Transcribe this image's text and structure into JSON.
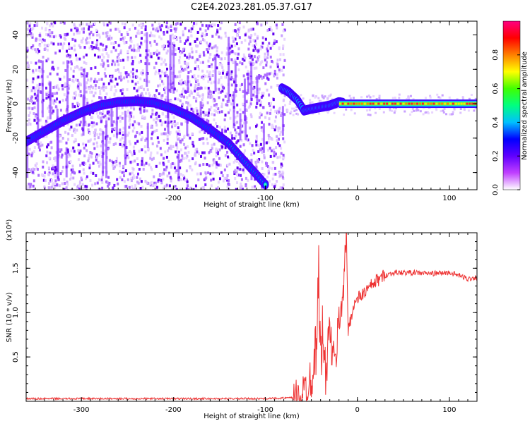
{
  "title": "C2E4.2023.281.05.37.G17",
  "chart_data": [
    {
      "type": "heatmap",
      "xlabel": "Height of straight line (km)",
      "ylabel": "Frequency (Hz)",
      "xlim": [
        -360,
        130
      ],
      "ylim": [
        -50,
        48
      ],
      "xticks": [
        -300,
        -200,
        -100,
        0,
        100
      ],
      "xtick_labels": [
        "-300",
        "-200",
        "-100",
        "0",
        "100"
      ],
      "yticks": [
        -40,
        -20,
        0,
        20,
        40
      ],
      "ytick_labels": [
        "-40",
        "-20",
        "0",
        "20",
        "40"
      ],
      "colorbar": {
        "label": "Normalized spectral amplitude",
        "range": [
          0,
          1
        ],
        "ticks": [
          0.0,
          0.2,
          0.4,
          0.6,
          0.8
        ],
        "tick_labels": [
          "0.0",
          "0.2",
          "0.4",
          "0.6",
          "0.8"
        ],
        "colors": [
          "#ffffff",
          "#c040ff",
          "#6000ff",
          "#0000ff",
          "#00c0ff",
          "#00ff80",
          "#40ff00",
          "#ffff00",
          "#ff8000",
          "#ff0000",
          "#ff0080"
        ]
      },
      "ridge_upper": {
        "x": [
          -360,
          -340,
          -320,
          -300,
          -280,
          -260,
          -240,
          -220,
          -200,
          -180,
          -160,
          -140,
          -120,
          -100
        ],
        "y": [
          -22,
          -16,
          -10,
          -5,
          -1,
          1,
          1.5,
          0.5,
          -3,
          -8,
          -15,
          -23,
          -35,
          -47
        ]
      },
      "ridge_lower": {
        "x": [
          -82,
          -75,
          -65,
          -58,
          -50,
          -40,
          -30,
          -20,
          -10,
          0,
          50,
          100,
          130
        ],
        "y": [
          9,
          7,
          2,
          -4,
          -3,
          -2,
          -1,
          1,
          0,
          0,
          0,
          0,
          0
        ]
      }
    },
    {
      "type": "line",
      "xlabel": "Height of straight line (km)",
      "ylabel": "SNR (10 * v/v)",
      "yscale_label": "(x10⁴)",
      "xlim": [
        -360,
        130
      ],
      "ylim": [
        0,
        1.9
      ],
      "xticks": [
        -300,
        -200,
        -100,
        0,
        100
      ],
      "xtick_labels": [
        "-300",
        "-200",
        "-100",
        "0",
        "100"
      ],
      "yticks": [
        0.5,
        1.0,
        1.5
      ],
      "ytick_labels": [
        "0.5",
        "1.0",
        "1.5"
      ],
      "series": [
        {
          "color": "#ee3333",
          "x": [
            -360,
            -300,
            -250,
            -200,
            -150,
            -100,
            -70,
            -60,
            -55,
            -50,
            -45,
            -42,
            -40,
            -38,
            -35,
            -30,
            -25,
            -20,
            -15,
            -12,
            -10,
            -5,
            0,
            10,
            20,
            30,
            40,
            60,
            80,
            100,
            110,
            120,
            130
          ],
          "y": [
            0.03,
            0.03,
            0.03,
            0.03,
            0.03,
            0.03,
            0.04,
            0.07,
            0.15,
            0.3,
            0.6,
            1.45,
            0.4,
            0.8,
            0.3,
            0.8,
            0.35,
            0.9,
            1.3,
            1.9,
            0.8,
            1.05,
            1.15,
            1.25,
            1.35,
            1.42,
            1.45,
            1.45,
            1.44,
            1.45,
            1.42,
            1.38,
            1.4
          ]
        }
      ]
    }
  ]
}
